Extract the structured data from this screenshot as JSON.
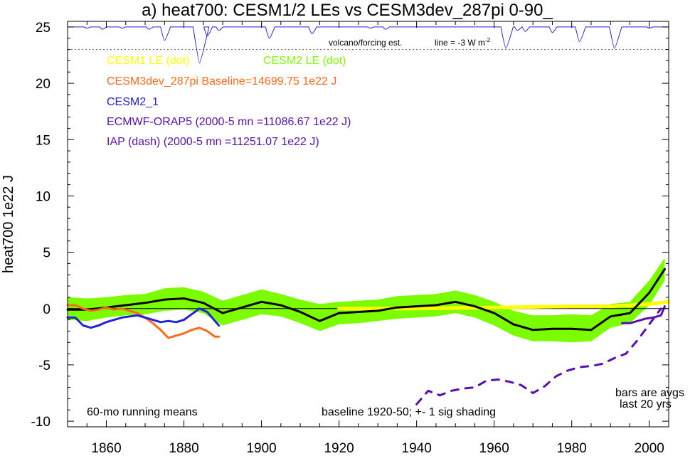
{
  "chart_data": {
    "type": "line",
    "title": "a) heat700: CESM1/2 LEs vs CESM3dev_287pi 0-90_",
    "ylabel": "heat700 1e22 J",
    "xlabel": "",
    "xlim": [
      1850,
      2005
    ],
    "ylim": [
      -10.5,
      25.5
    ],
    "x_ticks": [
      1860,
      1880,
      1900,
      1920,
      1940,
      1960,
      1980,
      2000
    ],
    "y_ticks": [
      -10,
      -5,
      0,
      5,
      10,
      15,
      20,
      25
    ],
    "y_tick_labels": [
      "-10",
      "-5",
      "0",
      "5",
      "10",
      "15",
      "20",
      "25"
    ],
    "legend_placement": "upper-left",
    "grid": false,
    "legend": [
      {
        "label": "CESM1 LE (dot)",
        "color": "#ffff00"
      },
      {
        "label": "CESM2 LE (dot)",
        "color": "#7cfc00"
      },
      {
        "label": "CESM3dev_287pi Baseline=14699.75 1e22 J",
        "color": "#ff6a1a"
      },
      {
        "label": "CESM2_1",
        "color": "#2222dd"
      },
      {
        "label": "ECMWF-ORAP5 (2000-5 mn =11086.67 1e22 J)",
        "color": "#5a10b0"
      },
      {
        "label": "IAP (dash) (2000-5 mn =11251.07 1e22 J)",
        "color": "#5a10b0"
      }
    ],
    "annotations": {
      "volcano": "volcano/forcing est.",
      "line_note": "line = -3 W m",
      "line_note_sup": "-2",
      "running_means": "60-mo running means",
      "baseline": "baseline 1920-50; +- 1 sig shading",
      "bars1": "bars are avgs",
      "bars2": "last 20 yrs"
    },
    "reference_line_y": 23,
    "volcano_baseline_y": 25,
    "volcano_dips": [
      {
        "x": 1855,
        "depth": 0.1
      },
      {
        "x": 1859,
        "depth": 0.2
      },
      {
        "x": 1864,
        "depth": 0.1
      },
      {
        "x": 1871,
        "depth": 0.2
      },
      {
        "x": 1875,
        "depth": 1.2
      },
      {
        "x": 1884,
        "depth": 3.2
      },
      {
        "x": 1886,
        "depth": 0.8
      },
      {
        "x": 1889,
        "depth": 0.3
      },
      {
        "x": 1902,
        "depth": 1.0
      },
      {
        "x": 1913,
        "depth": 0.6
      },
      {
        "x": 1928,
        "depth": 0.1
      },
      {
        "x": 1932,
        "depth": 0.2
      },
      {
        "x": 1963,
        "depth": 1.9
      },
      {
        "x": 1966,
        "depth": 0.3
      },
      {
        "x": 1968,
        "depth": 0.4
      },
      {
        "x": 1975,
        "depth": 0.5
      },
      {
        "x": 1982,
        "depth": 1.3
      },
      {
        "x": 1991,
        "depth": 1.9
      },
      {
        "x": 2000,
        "depth": 0.1
      }
    ],
    "green_band": {
      "x": [
        1850,
        1855,
        1860,
        1865,
        1870,
        1875,
        1880,
        1885,
        1890,
        1895,
        1900,
        1905,
        1910,
        1915,
        1920,
        1925,
        1930,
        1935,
        1940,
        1945,
        1950,
        1955,
        1960,
        1965,
        1970,
        1975,
        1980,
        1985,
        1990,
        1995,
        2000,
        2004
      ],
      "upper": [
        1.0,
        0.9,
        1.0,
        1.2,
        1.3,
        1.8,
        1.9,
        1.5,
        0.7,
        1.2,
        1.7,
        1.3,
        0.8,
        0.4,
        0.6,
        0.7,
        0.8,
        1.1,
        1.2,
        1.3,
        1.6,
        1.2,
        0.6,
        -0.2,
        -0.6,
        -0.6,
        -0.5,
        -0.6,
        0.4,
        0.6,
        2.5,
        4.5
      ],
      "lower": [
        -1.0,
        -1.1,
        -0.8,
        -0.6,
        -0.5,
        -0.2,
        -0.1,
        -0.4,
        -1.5,
        -1.0,
        -0.5,
        -0.7,
        -1.3,
        -2.0,
        -1.4,
        -1.3,
        -1.1,
        -0.9,
        -0.8,
        -0.7,
        -0.4,
        -0.8,
        -1.5,
        -2.4,
        -2.9,
        -2.9,
        -3.0,
        -2.9,
        -1.7,
        -1.3,
        0.3,
        2.5
      ]
    },
    "series": [
      {
        "name": "CESM1 LE (dot)",
        "color": "#ffff00",
        "width": 5,
        "x": [
          1920,
          1940,
          1960,
          1980,
          1990,
          2000,
          2005
        ],
        "y": [
          0.0,
          0.0,
          0.1,
          0.2,
          0.2,
          0.4,
          0.6
        ]
      },
      {
        "name": "CESM2 LE (dot)",
        "color": "#000000",
        "width": 3,
        "x": [
          1850,
          1855,
          1860,
          1865,
          1870,
          1875,
          1880,
          1885,
          1890,
          1895,
          1900,
          1905,
          1910,
          1915,
          1920,
          1925,
          1930,
          1935,
          1940,
          1945,
          1950,
          1955,
          1960,
          1965,
          1970,
          1975,
          1980,
          1985,
          1990,
          1995,
          2000,
          2004
        ],
        "y": [
          -0.1,
          -0.1,
          0.1,
          0.3,
          0.5,
          0.8,
          0.9,
          0.5,
          -0.4,
          0.1,
          0.6,
          0.3,
          -0.3,
          -1.1,
          -0.4,
          -0.3,
          -0.2,
          0.1,
          0.2,
          0.3,
          0.6,
          0.2,
          -0.4,
          -1.4,
          -1.9,
          -1.8,
          -1.8,
          -1.9,
          -0.7,
          -0.4,
          1.4,
          3.5
        ]
      },
      {
        "name": "CESM3dev_287pi Baseline=14699.75 1e22 J",
        "color": "#ff6a1a",
        "width": 3,
        "x": [
          1850,
          1852,
          1854,
          1856,
          1858,
          1860,
          1862,
          1864,
          1866,
          1868,
          1870,
          1872,
          1874,
          1876,
          1878,
          1880,
          1882,
          1884,
          1886,
          1888,
          1889
        ],
        "y": [
          0.3,
          0.3,
          0.0,
          -0.2,
          -0.1,
          0.1,
          -0.1,
          0.0,
          -0.2,
          -0.4,
          -0.8,
          -1.3,
          -1.9,
          -2.6,
          -2.4,
          -2.2,
          -1.9,
          -1.7,
          -2.0,
          -2.5,
          -2.5
        ]
      },
      {
        "name": "CESM2_1",
        "color": "#2222dd",
        "width": 3,
        "x": [
          1850,
          1852,
          1854,
          1856,
          1858,
          1860,
          1862,
          1864,
          1866,
          1868,
          1870,
          1872,
          1874,
          1876,
          1878,
          1880,
          1882,
          1884,
          1886,
          1888,
          1889
        ],
        "y": [
          -0.8,
          -0.8,
          -1.5,
          -1.7,
          -1.5,
          -1.2,
          -1.0,
          -0.8,
          -0.7,
          -0.6,
          -0.8,
          -1.0,
          -1.2,
          -1.1,
          -1.2,
          -1.0,
          -0.5,
          0.0,
          -0.3,
          -1.1,
          -1.5
        ]
      },
      {
        "name": "ECMWF-ORAP5 (2000-5 mn =11086.67 1e22 J)",
        "color": "#5a10b0",
        "width": 3,
        "x": [
          1993,
          1995,
          1997,
          1999,
          2001,
          2003,
          2004
        ],
        "y": [
          -1.3,
          -1.3,
          -1.1,
          -0.9,
          -0.8,
          -0.6,
          0.2
        ]
      },
      {
        "name": "IAP (dash) (2000-5 mn =11251.07 1e22 J)",
        "color": "#5a10b0",
        "width": 3,
        "dash": true,
        "x": [
          1940,
          1943,
          1946,
          1949,
          1952,
          1955,
          1958,
          1961,
          1964,
          1967,
          1970,
          1973,
          1976,
          1979,
          1982,
          1985,
          1988,
          1991,
          1994,
          1997,
          2000,
          2003
        ],
        "y": [
          -8.5,
          -7.3,
          -7.7,
          -7.3,
          -7.1,
          -7.0,
          -6.4,
          -6.3,
          -6.5,
          -6.8,
          -7.5,
          -6.9,
          -6.0,
          -5.5,
          -5.2,
          -5.1,
          -4.9,
          -4.4,
          -4.0,
          -2.8,
          -1.4,
          0.0
        ]
      }
    ]
  }
}
